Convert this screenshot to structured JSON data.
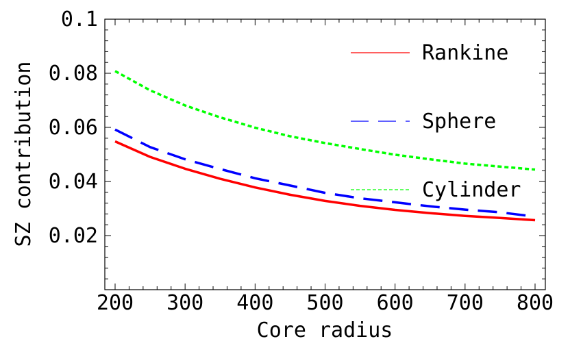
{
  "chart_data": {
    "type": "line",
    "title": "",
    "xlabel": "Core radius",
    "ylabel": "SZ contribution",
    "xlim": [
      200,
      800
    ],
    "ylim": [
      0,
      0.1
    ],
    "xticks": [
      200,
      300,
      400,
      500,
      600,
      700,
      800
    ],
    "yticks": [
      0.02,
      0.04,
      0.06,
      0.08,
      0.1
    ],
    "xtick_labels": [
      "200",
      "300",
      "400",
      "500",
      "600",
      "700",
      "800"
    ],
    "ytick_labels": [
      "0.02",
      "0.04",
      "0.06",
      "0.08",
      "0.1"
    ],
    "grid": false,
    "legend_position": "right",
    "x": [
      200,
      250,
      300,
      350,
      400,
      450,
      500,
      550,
      600,
      650,
      700,
      750,
      800
    ],
    "series": [
      {
        "name": "Rankine",
        "color": "#ff0000",
        "style": "solid",
        "values": [
          0.0548,
          0.0491,
          0.0447,
          0.041,
          0.0378,
          0.0351,
          0.0328,
          0.031,
          0.0295,
          0.0283,
          0.0273,
          0.0265,
          0.0257
        ]
      },
      {
        "name": "Sphere",
        "color": "#0000ff",
        "style": "long-dash",
        "values": [
          0.0592,
          0.0527,
          0.0482,
          0.0446,
          0.0412,
          0.0385,
          0.0358,
          0.0338,
          0.0323,
          0.0308,
          0.0296,
          0.0286,
          0.027
        ]
      },
      {
        "name": "Cylinder",
        "color": "#00ff00",
        "style": "short-dash",
        "values": [
          0.0808,
          0.0737,
          0.0681,
          0.0637,
          0.0599,
          0.0567,
          0.0542,
          0.052,
          0.0499,
          0.0482,
          0.0466,
          0.0455,
          0.0444
        ]
      }
    ]
  }
}
